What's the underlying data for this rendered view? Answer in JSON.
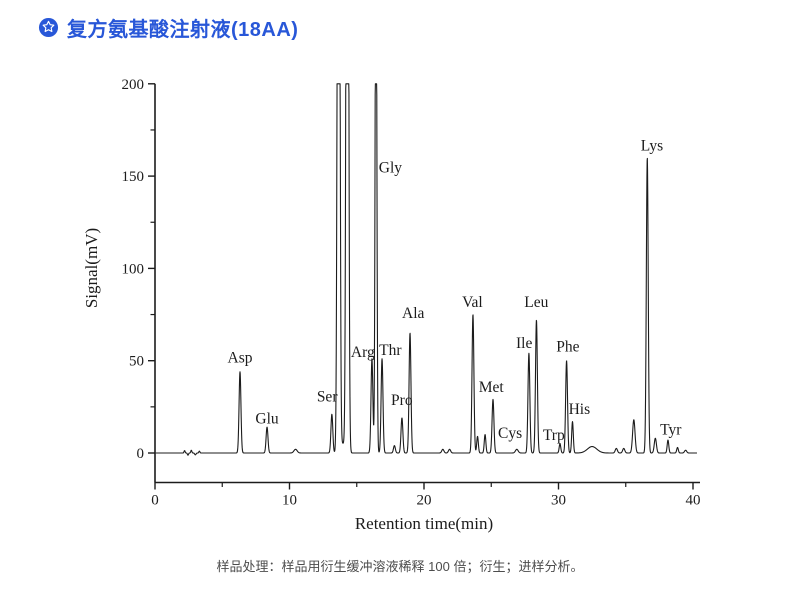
{
  "header": {
    "title": "复方氨基酸注射液(18AA)",
    "icon": "badge-star-icon"
  },
  "footer": {
    "note": "样品处理：样品用衍生缓冲溶液稀释 100 倍；衍生；进样分析。"
  },
  "colors": {
    "accent": "#2857d8",
    "trace": "#1c1c1c",
    "axis": "#1c1c1c",
    "note_text": "#4d4d4d"
  },
  "chart_data": {
    "type": "line",
    "title": "",
    "xlabel": "Retention time(min)",
    "ylabel": "Signal(mV)",
    "xlim": [
      0,
      40
    ],
    "ylim": [
      0,
      200
    ],
    "grid": false,
    "legend": false,
    "x_major_ticks": [
      0,
      10,
      20,
      30,
      40
    ],
    "x_minor_ticks": [
      5,
      15,
      25,
      35
    ],
    "y_major_ticks": [
      0,
      50,
      100,
      150,
      200
    ],
    "y_minor_ticks": [
      25,
      75,
      125,
      175
    ],
    "line_color": "#1c1c1c",
    "peaks": [
      {
        "name": "Asp",
        "rt": 6.32,
        "mv": 44
      },
      {
        "name": "Glu",
        "rt": 8.33,
        "mv": 14
      },
      {
        "name": "Ser",
        "rt": 13.15,
        "mv": 21
      },
      {
        "name": "",
        "rt": 13.65,
        "mv": 600,
        "w": 0.08,
        "clipped": true
      },
      {
        "name": "",
        "rt": 14.3,
        "mv": 600,
        "w": 0.08,
        "clipped": true
      },
      {
        "name": "Arg",
        "rt": 16.13,
        "mv": 51
      },
      {
        "name": "Gly",
        "rt": 16.43,
        "mv": 320,
        "w": 0.06,
        "clipped": true
      },
      {
        "name": "Thr",
        "rt": 16.88,
        "mv": 51
      },
      {
        "name": "",
        "rt": 17.8,
        "mv": 4
      },
      {
        "name": "Pro",
        "rt": 18.36,
        "mv": 19
      },
      {
        "name": "Ala",
        "rt": 18.96,
        "mv": 65
      },
      {
        "name": "Val",
        "rt": 23.64,
        "mv": 75
      },
      {
        "name": "Cys",
        "rt": 23.98,
        "mv": 9,
        "w": 0.06
      },
      {
        "name": "Cys",
        "rt": 24.54,
        "mv": 10,
        "w": 0.06
      },
      {
        "name": "Met",
        "rt": 25.13,
        "mv": 29
      },
      {
        "name": "Ile",
        "rt": 27.8,
        "mv": 54
      },
      {
        "name": "Leu",
        "rt": 28.36,
        "mv": 72
      },
      {
        "name": "Trp",
        "rt": 30.11,
        "mv": 5,
        "w": 0.06
      },
      {
        "name": "Phe",
        "rt": 30.6,
        "mv": 50
      },
      {
        "name": "His",
        "rt": 31.04,
        "mv": 17,
        "w": 0.06
      },
      {
        "name": "",
        "rt": 35.6,
        "mv": 18,
        "w": 0.09
      },
      {
        "name": "Lys",
        "rt": 36.6,
        "mv": 160
      },
      {
        "name": "",
        "rt": 37.2,
        "mv": 8,
        "w": 0.08
      },
      {
        "name": "Tyr",
        "rt": 38.14,
        "mv": 7,
        "w": 0.06
      }
    ],
    "labels": [
      {
        "text": "Asp",
        "rt": 6.32,
        "mv": 49
      },
      {
        "text": "Glu",
        "rt": 8.33,
        "mv": 16
      },
      {
        "text": "Ser",
        "rt": 12.8,
        "mv": 28
      },
      {
        "text": "Arg",
        "rt": 15.45,
        "mv": 52
      },
      {
        "text": "Thr",
        "rt": 17.5,
        "mv": 53
      },
      {
        "text": "Gly",
        "rt": 17.5,
        "mv": 152
      },
      {
        "text": "Pro",
        "rt": 18.35,
        "mv": 26
      },
      {
        "text": "Ala",
        "rt": 19.2,
        "mv": 73
      },
      {
        "text": "Val",
        "rt": 23.6,
        "mv": 79
      },
      {
        "text": "Met",
        "rt": 25.0,
        "mv": 33
      },
      {
        "text": "Cys",
        "rt": 26.4,
        "mv": 8
      },
      {
        "text": "Ile",
        "rt": 27.45,
        "mv": 57
      },
      {
        "text": "Leu",
        "rt": 28.35,
        "mv": 79
      },
      {
        "text": "Trp",
        "rt": 29.65,
        "mv": 7
      },
      {
        "text": "Phe",
        "rt": 30.7,
        "mv": 55
      },
      {
        "text": "His",
        "rt": 31.55,
        "mv": 21
      },
      {
        "text": "Lys",
        "rt": 36.95,
        "mv": 164
      },
      {
        "text": "Tyr",
        "rt": 38.35,
        "mv": 10
      }
    ],
    "baseline_noise": [
      {
        "rt": 2.2,
        "mv": 1.3,
        "w": 0.04
      },
      {
        "rt": 2.45,
        "mv": -1.2,
        "w": 0.04
      },
      {
        "rt": 2.7,
        "mv": 1.5,
        "w": 0.04
      },
      {
        "rt": 3.0,
        "mv": -1.0,
        "w": 0.05
      },
      {
        "rt": 3.3,
        "mv": 1.0,
        "w": 0.04
      },
      {
        "rt": 10.45,
        "mv": 2.0,
        "w": 0.12
      },
      {
        "rt": 13.97,
        "mv": 5.0,
        "w": 0.18
      },
      {
        "rt": 21.4,
        "mv": 2.0,
        "w": 0.08
      },
      {
        "rt": 21.9,
        "mv": 2.0,
        "w": 0.08
      },
      {
        "rt": 26.9,
        "mv": 2.0,
        "w": 0.1
      },
      {
        "rt": 32.5,
        "mv": 3.5,
        "w": 0.35
      },
      {
        "rt": 34.3,
        "mv": 2.5,
        "w": 0.08
      },
      {
        "rt": 34.85,
        "mv": 2.5,
        "w": 0.08
      },
      {
        "rt": 38.85,
        "mv": 3.0,
        "w": 0.06
      },
      {
        "rt": 39.45,
        "mv": 1.5,
        "w": 0.08
      }
    ]
  }
}
